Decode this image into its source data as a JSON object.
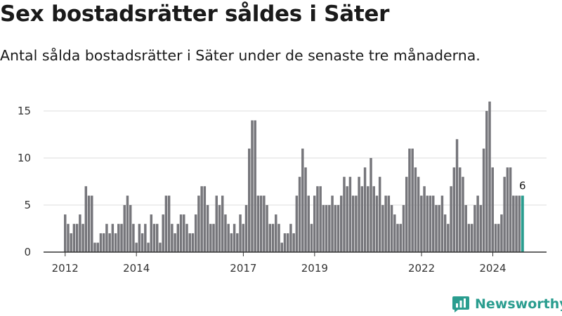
{
  "title": "Sex bostadsrätter såldes i Säter",
  "subtitle": "Antal sålda bostadsrätter i Säter under de senaste tre månaderna.",
  "brand": {
    "name": "Newsworthy",
    "icon": "newsworthy-logo-icon",
    "color": "#2a9d8f"
  },
  "chart_data": {
    "type": "bar",
    "ylim": [
      0,
      17
    ],
    "yticks": [
      0,
      5,
      10,
      15
    ],
    "xticks": [
      2012,
      2014,
      2017,
      2019,
      2022,
      2024
    ],
    "x_start": 2012.0,
    "x_step": 0.0833,
    "grid": true,
    "bar_color": "#76767b",
    "highlight_color": "#2a9d8f",
    "highlight_label": "6",
    "values": [
      4,
      3,
      2,
      3,
      3,
      4,
      3,
      7,
      6,
      6,
      1,
      1,
      2,
      2,
      3,
      2,
      3,
      2,
      3,
      3,
      5,
      6,
      5,
      3,
      1,
      3,
      2,
      3,
      1,
      4,
      3,
      3,
      1,
      4,
      6,
      6,
      3,
      2,
      3,
      4,
      4,
      3,
      2,
      2,
      4,
      6,
      7,
      7,
      5,
      3,
      3,
      6,
      5,
      6,
      4,
      3,
      2,
      3,
      2,
      4,
      3,
      5,
      11,
      14,
      14,
      6,
      6,
      6,
      5,
      3,
      3,
      4,
      3,
      1,
      2,
      2,
      3,
      2,
      6,
      8,
      11,
      9,
      6,
      3,
      6,
      7,
      7,
      5,
      5,
      5,
      6,
      5,
      5,
      6,
      8,
      7,
      8,
      6,
      6,
      8,
      7,
      9,
      7,
      10,
      7,
      6,
      8,
      5,
      6,
      6,
      5,
      4,
      3,
      3,
      5,
      8,
      11,
      11,
      9,
      8,
      6,
      7,
      6,
      6,
      6,
      5,
      5,
      6,
      4,
      3,
      7,
      9,
      12,
      9,
      8,
      5,
      3,
      3,
      5,
      6,
      5,
      11,
      15,
      16,
      9,
      3,
      3,
      4,
      8,
      9,
      9,
      6,
      6,
      6,
      6
    ]
  }
}
